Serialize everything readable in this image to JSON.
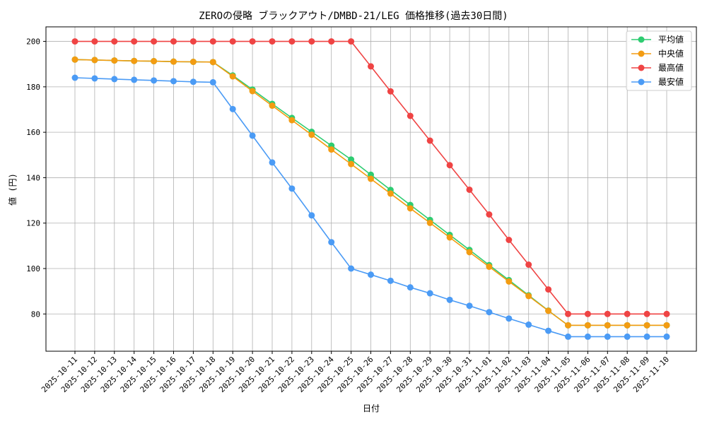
{
  "chart_data": {
    "type": "line",
    "title": "ZEROの侵略 ブラックアウト/DMBD-21/LEG 価格推移(過去30日間)",
    "xlabel": "日付",
    "ylabel": "値 (円)",
    "ylim": [
      63.6,
      206.4
    ],
    "yticks": [
      80,
      100,
      120,
      140,
      160,
      180,
      200
    ],
    "grid": true,
    "legend_position": "top-right",
    "categories": [
      "2025-10-11",
      "2025-10-12",
      "2025-10-13",
      "2025-10-14",
      "2025-10-15",
      "2025-10-16",
      "2025-10-17",
      "2025-10-18",
      "2025-10-19",
      "2025-10-20",
      "2025-10-21",
      "2025-10-22",
      "2025-10-23",
      "2025-10-24",
      "2025-10-25",
      "2025-10-26",
      "2025-10-27",
      "2025-10-28",
      "2025-10-29",
      "2025-10-30",
      "2025-10-31",
      "2025-11-01",
      "2025-11-02",
      "2025-11-03",
      "2025-11-04",
      "2025-11-05",
      "2025-11-06",
      "2025-11-07",
      "2025-11-08",
      "2025-11-09",
      "2025-11-10"
    ],
    "series": [
      {
        "name": "平均値",
        "color": "#2ecc71",
        "values": [
          192,
          191.8,
          191.6,
          191.4,
          191.3,
          191.1,
          191,
          190.9,
          185,
          178.8,
          172.5,
          166.3,
          160.2,
          154.1,
          148,
          141.3,
          134.6,
          128,
          121.4,
          114.8,
          108.2,
          101.5,
          94.9,
          88.2,
          81.5,
          75,
          75,
          75,
          75,
          75,
          75
        ]
      },
      {
        "name": "中央値",
        "color": "#f39c12",
        "values": [
          192,
          191.8,
          191.6,
          191.4,
          191.3,
          191.1,
          191,
          190.9,
          184.6,
          178.1,
          171.7,
          165.3,
          158.9,
          152.4,
          146,
          139.5,
          133,
          126.5,
          120.1,
          113.7,
          107.2,
          100.8,
          94.3,
          87.9,
          81.4,
          75,
          75,
          75,
          75,
          75,
          75
        ]
      },
      {
        "name": "最高値",
        "color": "#ef4444",
        "values": [
          200,
          200,
          200,
          200,
          200,
          200,
          200,
          200,
          200,
          200,
          200,
          200,
          200,
          200,
          200,
          189,
          178,
          167.2,
          156.3,
          145.5,
          134.7,
          123.8,
          112.6,
          101.7,
          90.8,
          80,
          80,
          80,
          80,
          80,
          80
        ]
      },
      {
        "name": "最安値",
        "color": "#4b9bf5",
        "values": [
          184,
          183.7,
          183.4,
          183.1,
          182.8,
          182.5,
          182.2,
          182,
          170.2,
          158.5,
          146.7,
          135.2,
          123.4,
          111.6,
          100,
          97.3,
          94.6,
          91.7,
          89.1,
          86.2,
          83.6,
          80.8,
          78,
          75.3,
          72.6,
          70,
          70,
          70,
          70,
          70,
          70
        ]
      }
    ]
  }
}
